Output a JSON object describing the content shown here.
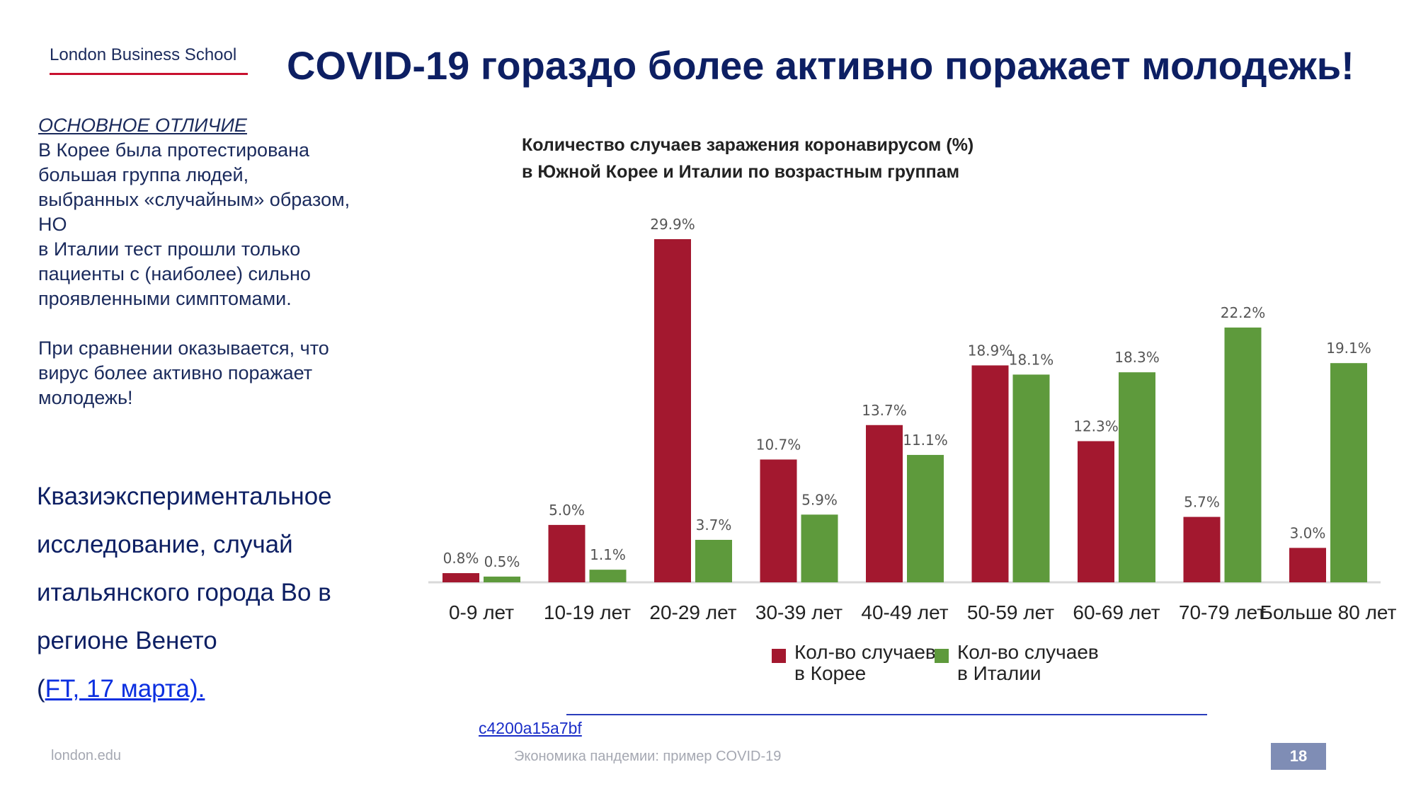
{
  "header": {
    "logo_text": "London Business School",
    "title": "COVID-19 гораздо более активно поражает молодежь!"
  },
  "left": {
    "heading": "ОСНОВНОЕ ОТЛИЧИЕ",
    "lines": [
      "В Корее была протестирована",
      "большая группа людей,",
      "выбранных «случайным» образом,",
      "НО",
      "в Италии тест прошли только",
      "пациенты с (наиболее) сильно",
      "проявленными симптомами."
    ],
    "conclusion_lines": [
      "При сравнении оказывается, что",
      "вирус более активно поражает",
      "молодежь!"
    ],
    "study_lines": [
      "Квазиэкспериментальное",
      "исследование, случай",
      "итальянского города Во в",
      "регионе Венето"
    ],
    "study_open": "(",
    "study_link": "FT, 17 марта)."
  },
  "chart_data": {
    "type": "bar",
    "title_lines": [
      "Количество случаев заражения коронавирусом (%)",
      "в Южной Корее и Италии по возрастным группам"
    ],
    "categories": [
      "0-9 лет",
      "10-19 лет",
      "20-29 лет",
      "30-39 лет",
      "40-49 лет",
      "50-59 лет",
      "60-69 лет",
      "70-79 лет",
      "Больше 80 лет"
    ],
    "series": [
      {
        "name": "Кол-во случаев в Корее",
        "legend_lines": [
          "Кол-во случаев",
          "в Корее"
        ],
        "color": "#a3182f",
        "values": [
          0.8,
          5.0,
          29.9,
          10.7,
          13.7,
          18.9,
          12.3,
          5.7,
          3.0
        ],
        "labels": [
          "0.8%",
          "5.0%",
          "29.9%",
          "10.7%",
          "13.7%",
          "18.9%",
          "12.3%",
          "5.7%",
          "3.0%"
        ]
      },
      {
        "name": "Кол-во случаев в Италии",
        "legend_lines": [
          "Кол-во случаев",
          "в Италии"
        ],
        "color": "#5e9a3c",
        "values": [
          0.5,
          1.1,
          3.7,
          5.9,
          11.1,
          18.1,
          18.3,
          22.2,
          19.1
        ],
        "labels": [
          "0.5%",
          "1.1%",
          "3.7%",
          "5.9%",
          "11.1%",
          "18.1%",
          "18.3%",
          "22.2%",
          "19.1%"
        ]
      }
    ],
    "ylim": [
      0,
      30
    ],
    "xlabel": "",
    "ylabel": "",
    "grid": false,
    "legend_position": "bottom-center"
  },
  "footer": {
    "link_text": "c4200a15a7bf",
    "site": "london.edu",
    "caption": "Экономика пандемии: пример COVID-19",
    "page": "18"
  }
}
